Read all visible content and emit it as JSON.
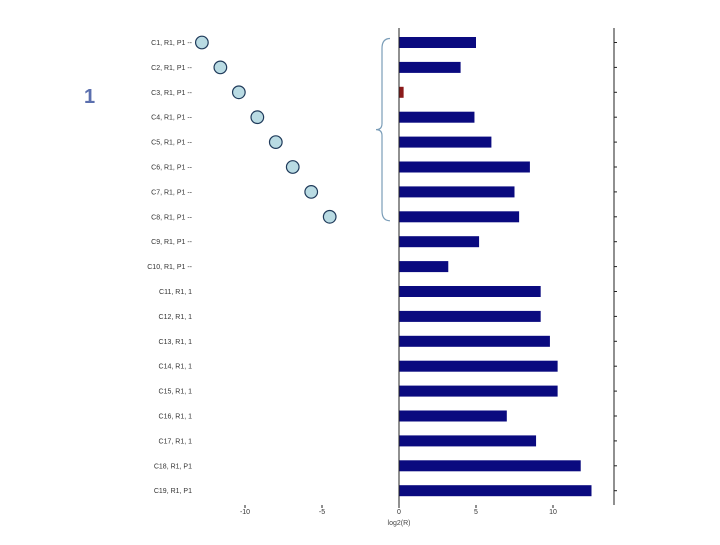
{
  "slide_number": "1",
  "chart_data": {
    "type": "bar",
    "xlabel": "log2(R)",
    "xlim": [
      -14,
      13
    ],
    "xticks": [
      -10,
      -5,
      0,
      5,
      10
    ],
    "grid": false,
    "categories": [
      "C1, R1, P1 --",
      "C2, R1, P1 --",
      "C3, R1, P1 --",
      "C4, R1, P1 --",
      "C5, R1, P1 --",
      "C6, R1, P1 --",
      "C7, R1, P1 --",
      "C8, R1, P1 --",
      "C9, R1, P1 --",
      "C10, R1, P1 --",
      "C11, R1, 1",
      "C12, R1, 1",
      "C13, R1, 1",
      "C14, R1, 1",
      "C15, R1, 1",
      "C16, R1, 1",
      "C17, R1, 1",
      "C18, R1, P1",
      "C19, R1, P1"
    ],
    "series": [
      {
        "values": [
          5.0,
          4.0,
          0.3,
          4.9,
          6.0,
          8.5,
          7.5,
          7.8,
          5.2,
          3.2,
          9.2,
          9.2,
          9.8,
          10.3,
          10.3,
          7.0,
          8.9,
          11.8,
          12.5
        ],
        "colors": [
          "#0a0a7f",
          "#0a0a7f",
          "#8b1a1a",
          "#0a0a7f",
          "#0a0a7f",
          "#0a0a7f",
          "#0a0a7f",
          "#0a0a7f",
          "#0a0a7f",
          "#0a0a7f",
          "#0a0a7f",
          "#0a0a7f",
          "#0a0a7f",
          "#0a0a7f",
          "#0a0a7f",
          "#0a0a7f",
          "#0a0a7f",
          "#0a0a7f",
          "#0a0a7f"
        ]
      }
    ],
    "markers": {
      "type": "circle",
      "fill": "#b9dbe3",
      "stroke": "#1f3a5a",
      "points": [
        {
          "row": 0,
          "x": -12.8
        },
        {
          "row": 1,
          "x": -11.6
        },
        {
          "row": 2,
          "x": -10.4
        },
        {
          "row": 3,
          "x": -9.2
        },
        {
          "row": 4,
          "x": -8.0
        },
        {
          "row": 5,
          "x": -6.9
        },
        {
          "row": 6,
          "x": -5.7
        },
        {
          "row": 7,
          "x": -4.5
        }
      ]
    },
    "bracket": {
      "from_row": 0,
      "to_row": 7,
      "stroke": "#7a9db8"
    }
  }
}
